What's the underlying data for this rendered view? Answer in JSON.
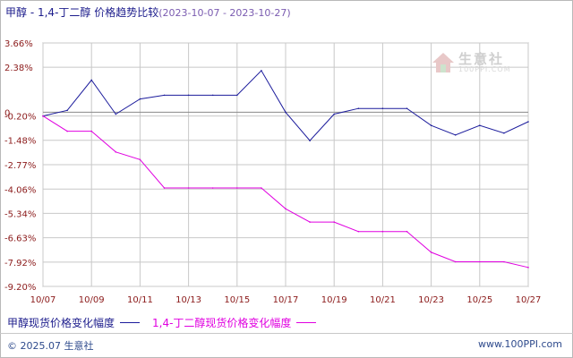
{
  "header": {
    "series_a": "甲醇",
    "separator": " - ",
    "series_b": "1,4-丁二醇",
    "title_suffix": "价格趋势比较",
    "date_range": "(2023-10-07 - 2023-10-27)"
  },
  "watermark": {
    "brand": "生意社",
    "url": "100PPI.COM"
  },
  "legend": {
    "series_a_label": "甲醇现货价格变化幅度",
    "series_b_label": "1,4-丁二醇现货价格变化幅度"
  },
  "footer": {
    "copyright": "© 2025.07 生意社",
    "site": "www.100PPI.com"
  },
  "colors": {
    "series_a": "#1c1c9c",
    "series_b": "#e000e0",
    "grid": "#c8c8c8",
    "axis_text": "#8b1a1a"
  },
  "chart_data": {
    "type": "line",
    "x": [
      "10/07",
      "10/08",
      "10/09",
      "10/10",
      "10/11",
      "10/12",
      "10/13",
      "10/14",
      "10/15",
      "10/16",
      "10/17",
      "10/18",
      "10/19",
      "10/20",
      "10/21",
      "10/22",
      "10/23",
      "10/24",
      "10/25",
      "10/26",
      "10/27"
    ],
    "x_tick_labels": [
      "10/07",
      "10/09",
      "10/11",
      "10/13",
      "10/15",
      "10/17",
      "10/19",
      "10/21",
      "10/23",
      "10/25",
      "10/27"
    ],
    "y_tick_labels": [
      "3.66%",
      "2.38%",
      "0",
      "-0.20%",
      "-1.48%",
      "-2.77%",
      "-4.06%",
      "-5.34%",
      "-6.63%",
      "-7.92%",
      "-9.20%"
    ],
    "y_ticks": [
      3.66,
      2.38,
      0,
      -0.2,
      -1.48,
      -2.77,
      -4.06,
      -5.34,
      -6.63,
      -7.92,
      -9.2
    ],
    "ylim": [
      -9.2,
      3.66
    ],
    "grid": true,
    "legend_position": "bottom",
    "series": [
      {
        "name": "甲醇现货价格变化幅度",
        "values": [
          -0.2,
          0.1,
          1.7,
          -0.1,
          0.7,
          0.9,
          0.9,
          0.9,
          0.9,
          2.2,
          0.0,
          -1.5,
          -0.1,
          0.2,
          0.2,
          0.2,
          -0.7,
          -1.2,
          -0.7,
          -1.1,
          -0.5
        ]
      },
      {
        "name": "1,4-丁二醇现货价格变化幅度",
        "values": [
          -0.2,
          -1.0,
          -1.0,
          -2.1,
          -2.5,
          -4.0,
          -4.0,
          -4.0,
          -4.0,
          -4.0,
          -5.1,
          -5.8,
          -5.8,
          -6.3,
          -6.3,
          -6.3,
          -7.4,
          -7.9,
          -7.9,
          -7.9,
          -8.2
        ]
      }
    ]
  }
}
